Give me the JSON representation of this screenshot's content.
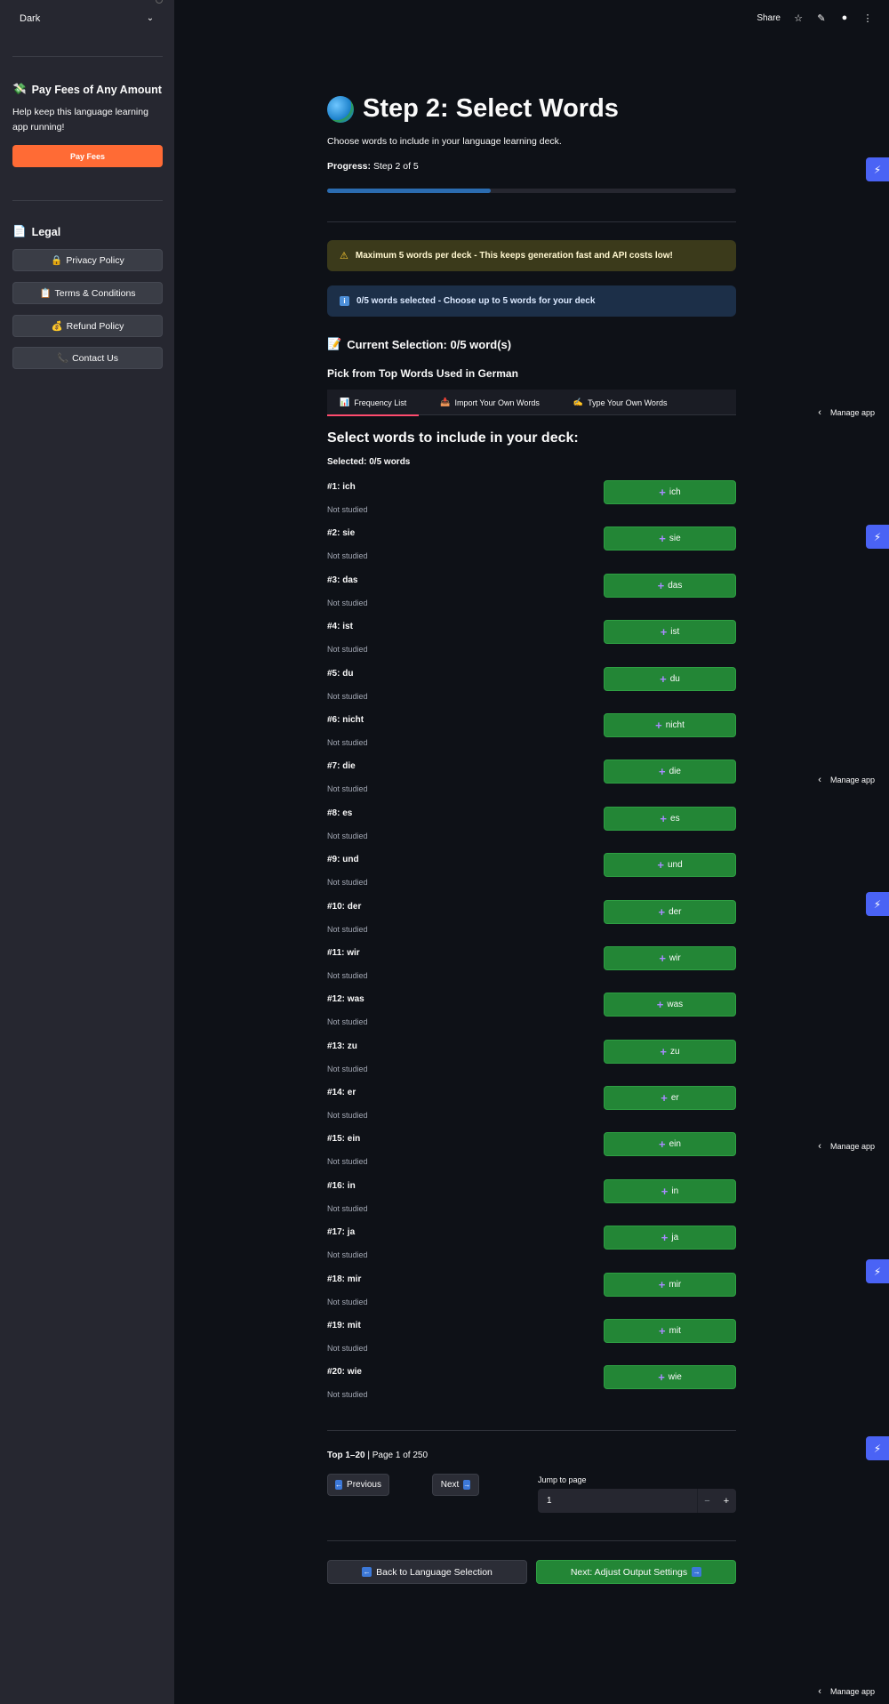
{
  "sidebar": {
    "theme_select_value": "Dark",
    "pay_section": {
      "title": "Pay Fees of Any Amount",
      "description": "Help keep this language learning app running!",
      "button_label": "Pay Fees"
    },
    "legal_section": {
      "title": "Legal",
      "items": [
        {
          "icon": "🔒",
          "label": "Privacy Policy"
        },
        {
          "icon": "📋",
          "label": "Terms & Conditions"
        },
        {
          "icon": "💰",
          "label": "Refund Policy"
        },
        {
          "icon": "📞",
          "label": "Contact Us"
        }
      ]
    }
  },
  "header": {
    "share_label": "Share"
  },
  "main": {
    "title": "Step 2: Select Words",
    "subtitle": "Choose words to include in your language learning deck.",
    "progress_label": "Progress:",
    "progress_value": "Step 2 of 5",
    "progress_fraction": 0.4,
    "warning_text": "Maximum 5 words per deck - This keeps generation fast and API costs low!",
    "info_text": "0/5 words selected - Choose up to 5 words for your deck",
    "current_selection": "Current Selection: 0/5 word(s)",
    "pick_heading": "Pick from Top Words Used in German",
    "tabs": [
      {
        "icon": "📊",
        "label": "Frequency List"
      },
      {
        "icon": "📥",
        "label": "Import Your Own Words"
      },
      {
        "icon": "✍️",
        "label": "Type Your Own Words"
      }
    ],
    "select_heading": "Select words to include in your deck:",
    "selected_count": "Selected: 0/5 words",
    "words": [
      {
        "label": "#1: ich",
        "status": "Not studied",
        "button": "ich"
      },
      {
        "label": "#2: sie",
        "status": "Not studied",
        "button": "sie"
      },
      {
        "label": "#3: das",
        "status": "Not studied",
        "button": "das"
      },
      {
        "label": "#4: ist",
        "status": "Not studied",
        "button": "ist"
      },
      {
        "label": "#5: du",
        "status": "Not studied",
        "button": "du"
      },
      {
        "label": "#6: nicht",
        "status": "Not studied",
        "button": "nicht"
      },
      {
        "label": "#7: die",
        "status": "Not studied",
        "button": "die"
      },
      {
        "label": "#8: es",
        "status": "Not studied",
        "button": "es"
      },
      {
        "label": "#9: und",
        "status": "Not studied",
        "button": "und"
      },
      {
        "label": "#10: der",
        "status": "Not studied",
        "button": "der"
      },
      {
        "label": "#11: wir",
        "status": "Not studied",
        "button": "wir"
      },
      {
        "label": "#12: was",
        "status": "Not studied",
        "button": "was"
      },
      {
        "label": "#13: zu",
        "status": "Not studied",
        "button": "zu"
      },
      {
        "label": "#14: er",
        "status": "Not studied",
        "button": "er"
      },
      {
        "label": "#15: ein",
        "status": "Not studied",
        "button": "ein"
      },
      {
        "label": "#16: in",
        "status": "Not studied",
        "button": "in"
      },
      {
        "label": "#17: ja",
        "status": "Not studied",
        "button": "ja"
      },
      {
        "label": "#18: mir",
        "status": "Not studied",
        "button": "mir"
      },
      {
        "label": "#19: mit",
        "status": "Not studied",
        "button": "mit"
      },
      {
        "label": "#20: wie",
        "status": "Not studied",
        "button": "wie"
      }
    ],
    "pager": {
      "range": "Top 1–20",
      "page_text": " | Page 1 of 250",
      "previous_label": "Previous",
      "next_label": "Next",
      "jump_label": "Jump to page",
      "jump_value": "1"
    },
    "back_button": "Back to Language Selection",
    "next_button": "Next: Adjust Output Settings"
  },
  "right_rail": {
    "manage_app_label": "Manage app"
  }
}
